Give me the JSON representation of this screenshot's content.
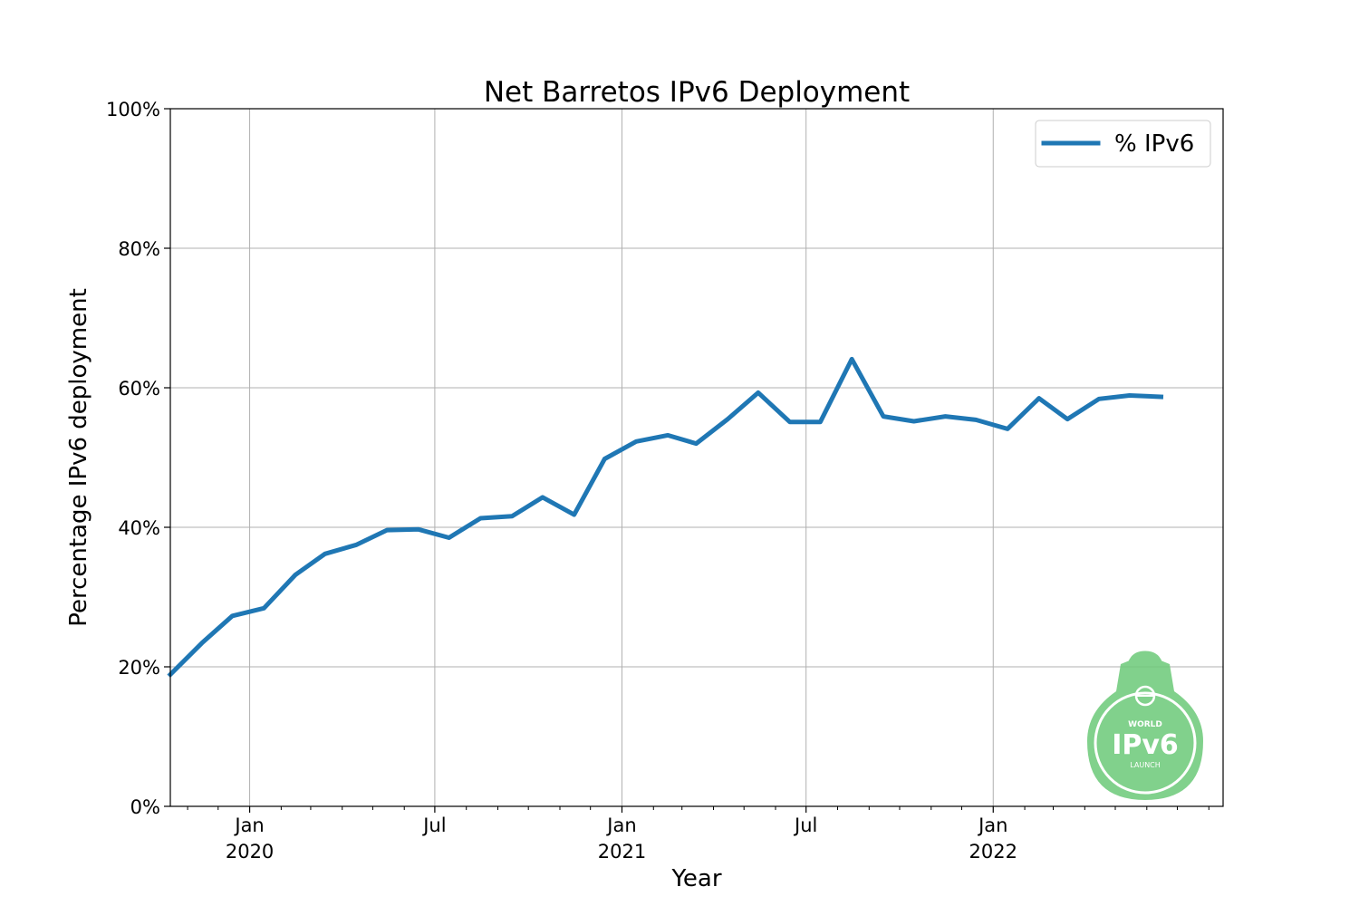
{
  "chart_data": {
    "type": "line",
    "title": "Net Barretos IPv6 Deployment",
    "xlabel": "Year",
    "ylabel": "Percentage IPv6 deployment",
    "xlim": [
      "2019-10-15",
      "2022-08-15"
    ],
    "ylim": [
      0,
      100
    ],
    "y_ticks": [
      {
        "value": 0,
        "label": "0%"
      },
      {
        "value": 20,
        "label": "20%"
      },
      {
        "value": 40,
        "label": "40%"
      },
      {
        "value": 60,
        "label": "60%"
      },
      {
        "value": 80,
        "label": "80%"
      },
      {
        "value": 100,
        "label": "100%"
      }
    ],
    "x_major_ticks": [
      {
        "date": "2020-01-01",
        "label": "Jan",
        "sublabel": "2020"
      },
      {
        "date": "2020-07-01",
        "label": "Jul",
        "sublabel": ""
      },
      {
        "date": "2021-01-01",
        "label": "Jan",
        "sublabel": "2021"
      },
      {
        "date": "2021-07-01",
        "label": "Jul",
        "sublabel": ""
      },
      {
        "date": "2022-01-01",
        "label": "Jan",
        "sublabel": "2022"
      }
    ],
    "x_minor_ticks": [
      "2019-11-01",
      "2019-12-01",
      "2020-02-01",
      "2020-03-01",
      "2020-04-01",
      "2020-05-01",
      "2020-06-01",
      "2020-08-01",
      "2020-09-01",
      "2020-10-01",
      "2020-11-01",
      "2020-12-01",
      "2021-02-01",
      "2021-03-01",
      "2021-04-01",
      "2021-05-01",
      "2021-06-01",
      "2021-08-01",
      "2021-09-01",
      "2021-10-01",
      "2021-11-01",
      "2021-12-01",
      "2022-02-01",
      "2022-03-01",
      "2022-04-01",
      "2022-05-01",
      "2022-06-01",
      "2022-07-01",
      "2022-08-01"
    ],
    "grid": true,
    "legend_position": "top-right",
    "series": [
      {
        "name": "% IPv6",
        "color": "#1f77b4",
        "x": [
          "2019-10-15",
          "2019-11-15",
          "2019-12-15",
          "2020-01-15",
          "2020-02-15",
          "2020-03-15",
          "2020-04-15",
          "2020-05-15",
          "2020-06-15",
          "2020-07-15",
          "2020-08-15",
          "2020-09-15",
          "2020-10-15",
          "2020-11-15",
          "2020-12-15",
          "2021-01-15",
          "2021-02-15",
          "2021-03-15",
          "2021-04-15",
          "2021-05-15",
          "2021-06-15",
          "2021-07-15",
          "2021-08-15",
          "2021-09-15",
          "2021-10-15",
          "2021-11-15",
          "2021-12-15",
          "2022-01-15",
          "2022-02-15",
          "2022-03-15",
          "2022-04-15",
          "2022-05-15",
          "2022-06-15"
        ],
        "y": [
          18.9,
          23.4,
          27.3,
          28.4,
          33.2,
          36.2,
          37.5,
          39.6,
          39.7,
          38.5,
          41.3,
          41.6,
          44.3,
          41.8,
          49.8,
          52.3,
          53.2,
          52.0,
          55.5,
          59.3,
          55.1,
          55.1,
          64.1,
          55.9,
          55.2,
          55.9,
          55.4,
          54.1,
          58.5,
          55.5,
          58.4,
          58.9,
          58.7
        ]
      }
    ]
  },
  "watermark": {
    "top_text": "WORLD",
    "main_text": "IPv6",
    "bottom_text": "LAUNCH",
    "color": "#6cc978"
  }
}
